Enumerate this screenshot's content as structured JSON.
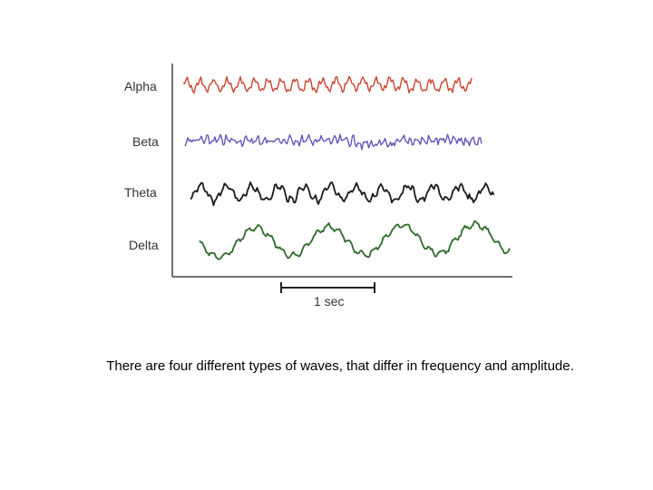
{
  "figure": {
    "waves": [
      {
        "label": "Alpha",
        "color": "#c8452e"
      },
      {
        "label": "Beta",
        "color": "#5a4fb8"
      },
      {
        "label": "Theta",
        "color": "#1a1a1a"
      },
      {
        "label": "Delta",
        "color": "#2e6b2a"
      }
    ],
    "scale_bar": {
      "label": "1 sec"
    }
  },
  "caption": "There are four different types of waves, that differ in frequency and amplitude."
}
